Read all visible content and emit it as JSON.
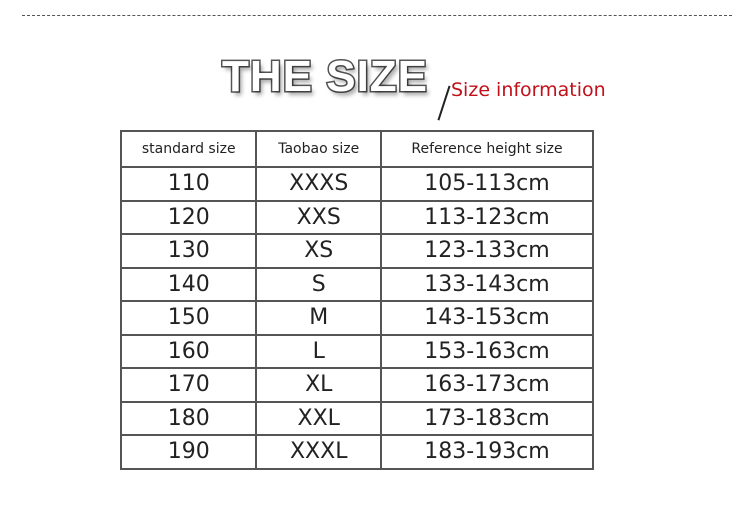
{
  "title": "THE SIZE",
  "subtitle": "Size information",
  "headers": [
    "standard size",
    "Taobao size",
    "Reference height size"
  ],
  "rows": [
    [
      "110",
      "XXXS",
      "105-113cm"
    ],
    [
      "120",
      "XXS",
      "113-123cm"
    ],
    [
      "130",
      "XS",
      "123-133cm"
    ],
    [
      "140",
      "S",
      "133-143cm"
    ],
    [
      "150",
      "M",
      "143-153cm"
    ],
    [
      "160",
      "L",
      "153-163cm"
    ],
    [
      "170",
      "XL",
      "163-173cm"
    ],
    [
      "180",
      "XXL",
      "173-183cm"
    ],
    [
      "190",
      "XXXL",
      "183-193cm"
    ]
  ]
}
